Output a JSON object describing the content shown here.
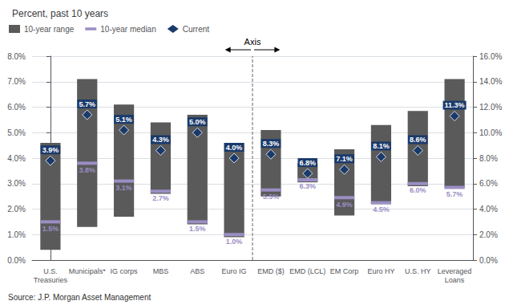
{
  "chart_data": {
    "type": "bar",
    "title": "Percent, past 10 years",
    "categories": [
      "U.S.\nTreasuries",
      "Municipals*",
      "IG corps",
      "MBS",
      "ABS",
      "Euro IG",
      "EMD ($)",
      "EMD (LCL)",
      "EM Corp",
      "Euro HY",
      "U.S. HY",
      "Leveraged\nLoans"
    ],
    "series": [
      {
        "name": "10-year range",
        "type": "range",
        "color": "#5a5a5a",
        "axis": "y",
        "low": [
          0.4,
          1.3,
          1.7,
          2.6,
          1.4,
          0.9,
          null,
          null,
          null,
          null,
          null,
          null
        ],
        "high": [
          4.6,
          7.1,
          6.1,
          5.4,
          5.7,
          4.6,
          null,
          null,
          null,
          null,
          null,
          null
        ]
      },
      {
        "name": "10-year range",
        "type": "range",
        "color": "#5a5a5a",
        "axis": "y2",
        "low": [
          null,
          null,
          null,
          null,
          null,
          null,
          5.0,
          6.1,
          3.5,
          4.4,
          5.8,
          5.7
        ],
        "high": [
          null,
          null,
          null,
          null,
          null,
          null,
          10.2,
          7.6,
          8.7,
          10.6,
          11.7,
          14.2
        ]
      },
      {
        "name": "10-year median",
        "type": "tick",
        "color": "#9b8ec4",
        "axis": "y",
        "data_labels": true,
        "values": [
          1.5,
          3.8,
          3.1,
          2.7,
          1.5,
          1.0,
          null,
          null,
          null,
          null,
          null,
          null
        ],
        "value_labels": [
          "1.5%",
          "3.8%",
          "3.1%",
          "2.7%",
          "1.5%",
          "1.0%",
          null,
          null,
          null,
          null,
          null,
          null
        ]
      },
      {
        "name": "10-year median",
        "type": "tick",
        "color": "#9b8ec4",
        "axis": "y2",
        "data_labels": true,
        "values": [
          null,
          null,
          null,
          null,
          null,
          null,
          5.5,
          6.3,
          4.9,
          4.5,
          6.0,
          5.7
        ],
        "value_labels": [
          null,
          null,
          null,
          null,
          null,
          null,
          "5.5%",
          "6.3%",
          "4.9%",
          "4.5%",
          "6.0%",
          "5.7%"
        ]
      },
      {
        "name": "Current",
        "type": "scatter",
        "marker": "diamond",
        "color": "#1a3a6b",
        "axis": "y",
        "data_labels": true,
        "values": [
          3.9,
          5.7,
          5.1,
          4.3,
          5.0,
          4.0,
          null,
          null,
          null,
          null,
          null,
          null
        ],
        "value_labels": [
          "3.9%",
          "5.7%",
          "5.1%",
          "4.3%",
          "5.0%",
          "4.0%",
          null,
          null,
          null,
          null,
          null,
          null
        ]
      },
      {
        "name": "Current",
        "type": "scatter",
        "marker": "diamond",
        "color": "#1a3a6b",
        "axis": "y2",
        "data_labels": true,
        "values": [
          null,
          null,
          null,
          null,
          null,
          null,
          8.3,
          6.8,
          7.1,
          8.1,
          8.6,
          11.3
        ],
        "value_labels": [
          null,
          null,
          null,
          null,
          null,
          null,
          "8.3%",
          "6.8%",
          "7.1%",
          "8.1%",
          "8.6%",
          "11.3%"
        ]
      }
    ],
    "ylim": [
      0.0,
      8.0
    ],
    "yticks": [
      {
        "value": 0.0,
        "label": "0.0%"
      },
      {
        "value": 1.0,
        "label": "1.0%"
      },
      {
        "value": 2.0,
        "label": "2.0%"
      },
      {
        "value": 3.0,
        "label": "3.0%"
      },
      {
        "value": 4.0,
        "label": "4.0%"
      },
      {
        "value": 5.0,
        "label": "5.0%"
      },
      {
        "value": 6.0,
        "label": "6.0%"
      },
      {
        "value": 7.0,
        "label": "7.0%"
      },
      {
        "value": 8.0,
        "label": "8.0%"
      }
    ],
    "y2lim": [
      0.0,
      16.0
    ],
    "y2ticks": [
      {
        "value": 0.0,
        "label": "0.0%"
      },
      {
        "value": 2.0,
        "label": "2.0%"
      },
      {
        "value": 4.0,
        "label": "4.0%"
      },
      {
        "value": 6.0,
        "label": "6.0%"
      },
      {
        "value": 8.0,
        "label": "8.0%"
      },
      {
        "value": 10.0,
        "label": "10.0%"
      },
      {
        "value": 12.0,
        "label": "12.0%"
      },
      {
        "value": 14.0,
        "label": "14.0%"
      },
      {
        "value": 16.0,
        "label": "16.0%"
      }
    ],
    "grid": true,
    "legend": "upper left",
    "annotations": [
      {
        "text": "Axis",
        "x": 5.5
      }
    ],
    "source": "Source: J.P. Morgan Asset Management"
  }
}
